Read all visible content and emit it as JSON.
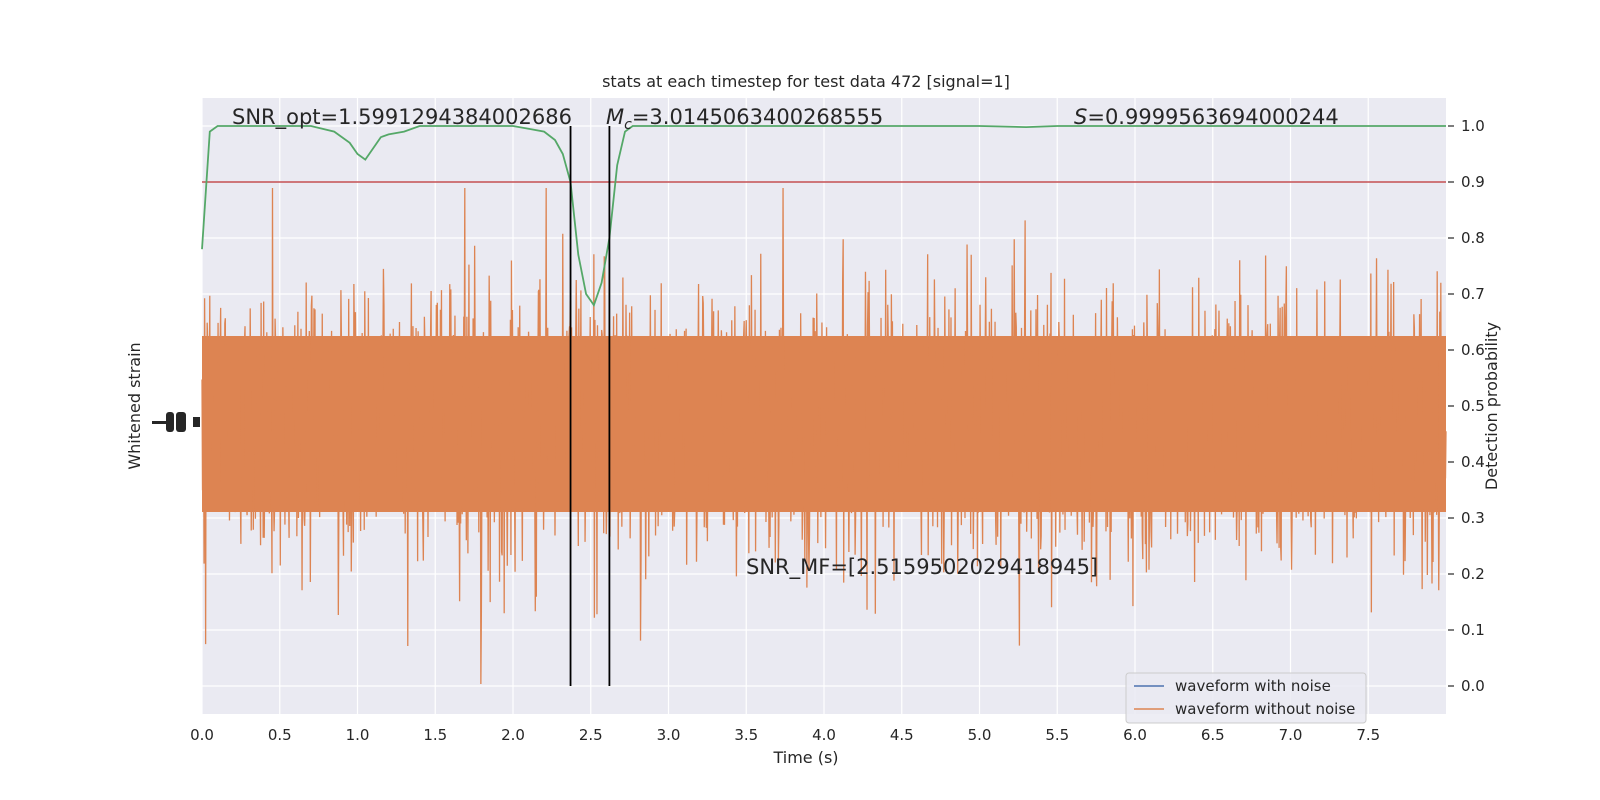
{
  "chart_data": {
    "type": "line",
    "title": "stats at each timestep for test data 472 [signal=1]",
    "xlabel": "Time (s)",
    "ylabel_left": "Whitened strain",
    "ylabel_right": "Detection probability",
    "xlim": [
      0.0,
      8.0
    ],
    "ylim_right": [
      -0.05,
      1.05
    ],
    "x_ticks": [
      "0.0",
      "0.5",
      "1.0",
      "1.5",
      "2.0",
      "2.5",
      "3.0",
      "3.5",
      "4.0",
      "4.5",
      "5.0",
      "5.5",
      "6.0",
      "6.5",
      "7.0",
      "7.5"
    ],
    "x_tick_values": [
      0,
      0.5,
      1,
      1.5,
      2,
      2.5,
      3,
      3.5,
      4,
      4.5,
      5,
      5.5,
      6,
      6.5,
      7,
      7.5
    ],
    "y_right_ticks": [
      "0.0",
      "0.1",
      "0.2",
      "0.3",
      "0.4",
      "0.5",
      "0.6",
      "0.7",
      "0.8",
      "0.9",
      "1.0"
    ],
    "y_right_tick_values": [
      0,
      0.1,
      0.2,
      0.3,
      0.4,
      0.5,
      0.6,
      0.7,
      0.8,
      0.9,
      1.0
    ],
    "threshold": 0.9,
    "vlines": [
      2.37,
      2.62
    ],
    "legend": {
      "placement": "lower-right",
      "entries": [
        {
          "label": "waveform with noise",
          "color": "#4c72b0"
        },
        {
          "label": "waveform without noise",
          "color": "#dd8452"
        }
      ]
    },
    "annotations": {
      "snr_opt": "SNR_opt=1.5991294384002686",
      "mc_symbol": "M",
      "mc_sub": "c",
      "mc_value": "=3.0145063400268555",
      "s_symbol": "S",
      "s_value": "=0.9999563694000244",
      "snr_mf": "SNR_MF=[2.5159502029418945]"
    },
    "detection_prob": {
      "color": "#55a868",
      "x": [
        0.0,
        0.05,
        0.1,
        0.15,
        0.2,
        0.3,
        0.5,
        0.7,
        0.85,
        0.95,
        1.0,
        1.05,
        1.1,
        1.15,
        1.2,
        1.3,
        1.4,
        1.5,
        2.0,
        2.1,
        2.2,
        2.27,
        2.32,
        2.37,
        2.42,
        2.47,
        2.52,
        2.57,
        2.62,
        2.67,
        2.72,
        2.77,
        2.82,
        2.9,
        3.0,
        4.0,
        5.0,
        5.3,
        5.5,
        6.0,
        7.0,
        8.0
      ],
      "y": [
        0.78,
        0.99,
        1.0,
        1.0,
        1.0,
        1.0,
        1.0,
        1.0,
        0.99,
        0.97,
        0.95,
        0.94,
        0.96,
        0.98,
        0.985,
        0.99,
        1.0,
        1.0,
        1.0,
        0.995,
        0.99,
        0.975,
        0.95,
        0.9,
        0.77,
        0.7,
        0.68,
        0.72,
        0.8,
        0.93,
        0.99,
        1.0,
        1.0,
        1.0,
        1.0,
        1.0,
        1.0,
        0.998,
        1.0,
        1.0,
        1.0,
        1.0
      ]
    },
    "strain_color": "#dd8452",
    "noise_color": "#4c72b0",
    "threshold_color": "#c44e52"
  }
}
